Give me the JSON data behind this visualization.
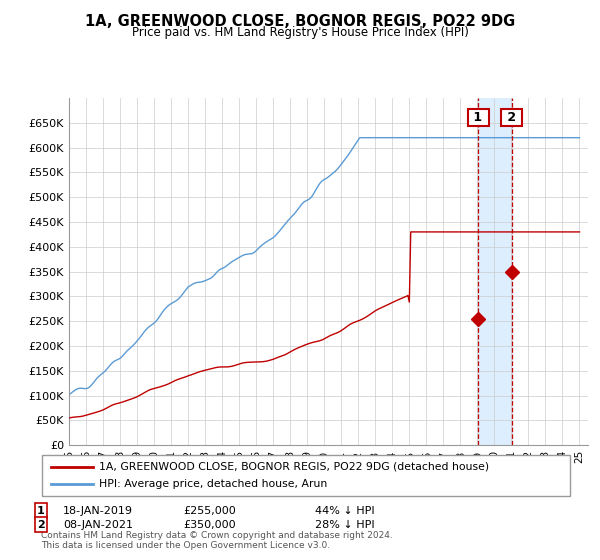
{
  "title": "1A, GREENWOOD CLOSE, BOGNOR REGIS, PO22 9DG",
  "subtitle": "Price paid vs. HM Land Registry's House Price Index (HPI)",
  "legend_line1": "1A, GREENWOOD CLOSE, BOGNOR REGIS, PO22 9DG (detached house)",
  "legend_line2": "HPI: Average price, detached house, Arun",
  "transaction1_date": "18-JAN-2019",
  "transaction1_price": 255000,
  "transaction1_pct": "44% ↓ HPI",
  "transaction2_date": "08-JAN-2021",
  "transaction2_price": 350000,
  "transaction2_pct": "28% ↓ HPI",
  "footer": "Contains HM Land Registry data © Crown copyright and database right 2024.\nThis data is licensed under the Open Government Licence v3.0.",
  "hpi_color": "#5b9bd5",
  "price_color": "#c00000",
  "box_color_1": "#c00000",
  "box_color_2": "#c00000",
  "shade_color": "#ddeeff",
  "ylim_min": 0,
  "ylim_max": 700000,
  "yticks": [
    0,
    50000,
    100000,
    150000,
    200000,
    250000,
    300000,
    350000,
    400000,
    450000,
    500000,
    550000,
    600000,
    650000
  ],
  "background_color": "#ffffff",
  "grid_color": "#cccccc"
}
